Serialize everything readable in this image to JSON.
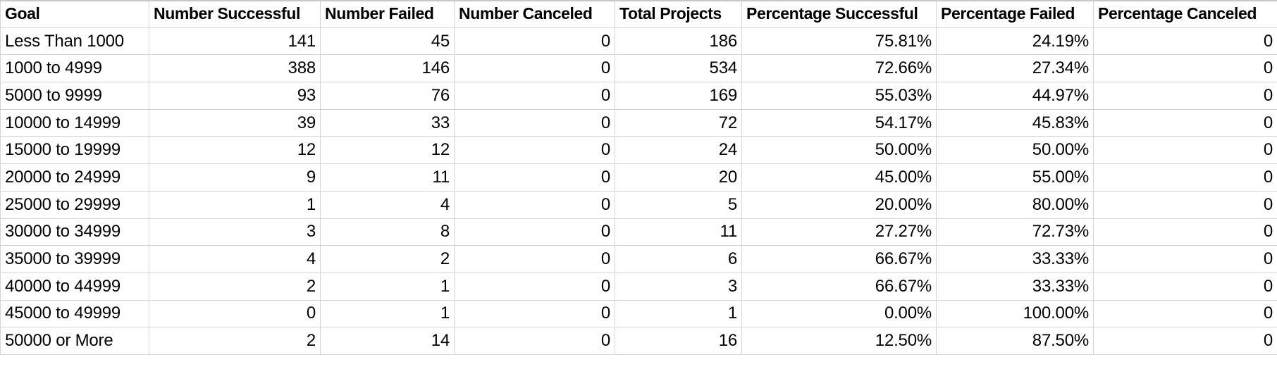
{
  "table": {
    "headers": [
      "Goal",
      "Number Successful",
      "Number Failed",
      "Number Canceled",
      "Total Projects",
      "Percentage Successful",
      "Percentage Failed",
      "Percentage Canceled"
    ],
    "rows": [
      [
        "Less Than 1000",
        "141",
        "45",
        "0",
        "186",
        "75.81%",
        "24.19%",
        "0"
      ],
      [
        "1000 to 4999",
        "388",
        "146",
        "0",
        "534",
        "72.66%",
        "27.34%",
        "0"
      ],
      [
        "5000 to 9999",
        "93",
        "76",
        "0",
        "169",
        "55.03%",
        "44.97%",
        "0"
      ],
      [
        "10000 to 14999",
        "39",
        "33",
        "0",
        "72",
        "54.17%",
        "45.83%",
        "0"
      ],
      [
        "15000 to 19999",
        "12",
        "12",
        "0",
        "24",
        "50.00%",
        "50.00%",
        "0"
      ],
      [
        "20000 to 24999",
        "9",
        "11",
        "0",
        "20",
        "45.00%",
        "55.00%",
        "0"
      ],
      [
        "25000 to 29999",
        "1",
        "4",
        "0",
        "5",
        "20.00%",
        "80.00%",
        "0"
      ],
      [
        "30000 to 34999",
        "3",
        "8",
        "0",
        "11",
        "27.27%",
        "72.73%",
        "0"
      ],
      [
        "35000 to 39999",
        "4",
        "2",
        "0",
        "6",
        "66.67%",
        "33.33%",
        "0"
      ],
      [
        "40000 to 44999",
        "2",
        "1",
        "0",
        "3",
        "66.67%",
        "33.33%",
        "0"
      ],
      [
        "45000 to 49999",
        "0",
        "1",
        "0",
        "1",
        "0.00%",
        "100.00%",
        "0"
      ],
      [
        "50000 or More",
        "2",
        "14",
        "0",
        "16",
        "12.50%",
        "87.50%",
        "0"
      ]
    ]
  }
}
